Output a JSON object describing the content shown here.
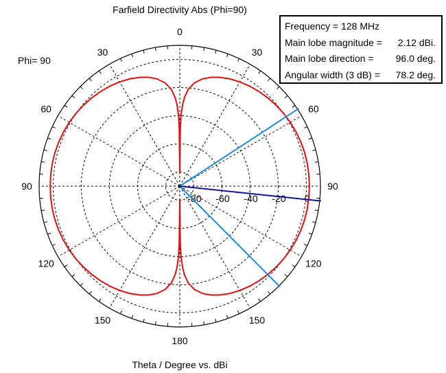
{
  "title": "Farfield Directivity Abs (Phi=90)",
  "phi_label": "Phi= 90",
  "footer_label": "Theta / Degree vs. dBi",
  "info_box": {
    "rows": [
      {
        "label": "Frequency = 128 MHz",
        "value": ""
      },
      {
        "label": "Main lobe magnitude =",
        "value": "2.12 dBi."
      },
      {
        "label": "Main lobe direction =",
        "value": "96.0 deg."
      },
      {
        "label": "Angular width (3 dB) =",
        "value": "78.2 deg."
      }
    ]
  },
  "colors": {
    "pattern": "#e01010",
    "main_lobe": "#1414a0",
    "beamwidth": "#1e8be6",
    "grid": "#000000"
  },
  "chart_data": {
    "type": "polar",
    "angle_unit": "deg",
    "angle_ticks": [
      0,
      30,
      60,
      90,
      120,
      150,
      180,
      150,
      120,
      90,
      60,
      30
    ],
    "radial_ticks": [
      "-80",
      "-60",
      "-40",
      "-20",
      "0"
    ],
    "radial_range_dBi": [
      -90,
      10
    ],
    "series": [
      {
        "theta_deg": [
          0,
          0.5,
          1,
          2,
          3,
          5,
          8,
          12,
          16,
          20,
          25,
          30,
          35,
          40,
          45,
          50,
          55,
          60,
          65,
          70,
          75,
          80,
          85,
          90,
          95,
          100,
          105,
          110,
          115,
          120,
          125,
          130,
          135,
          140,
          145,
          150,
          155,
          160,
          164,
          168,
          172,
          175,
          177,
          178,
          179,
          179.5,
          180
        ],
        "dBi": [
          -81,
          -50,
          -40,
          -32,
          -27,
          -21,
          -16,
          -12.1,
          -9.6,
          -7.7,
          -5.9,
          -4.5,
          -3.3,
          -2.3,
          -1.4,
          -0.6,
          0.1,
          0.7,
          1.2,
          1.6,
          1.9,
          2.05,
          2.12,
          2.12,
          2.12,
          2.05,
          1.9,
          1.6,
          1.2,
          0.7,
          0.1,
          -0.6,
          -1.4,
          -2.3,
          -3.3,
          -4.5,
          -5.9,
          -7.7,
          -9.6,
          -12.1,
          -16,
          -21,
          -27,
          -32,
          -40,
          -50,
          -81
        ]
      }
    ],
    "main_lobe_direction_deg": 96.0,
    "beamwidth_deg": [
      56.9,
      135.1
    ],
    "main_lobe_magnitude_dBi": 2.12,
    "angular_width_deg": 78.2
  }
}
